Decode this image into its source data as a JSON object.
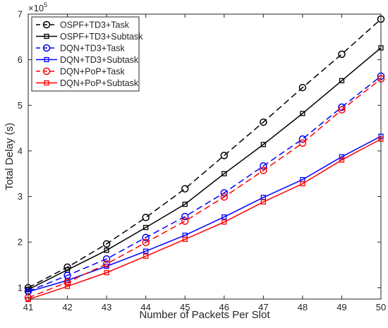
{
  "chart_data": {
    "type": "line",
    "xlabel": "Number of Packets Per Slot",
    "ylabel": "Total Delay (s)",
    "exponent_label": "×10",
    "exponent_power": "5",
    "x": [
      41,
      42,
      43,
      44,
      45,
      46,
      47,
      48,
      49,
      50
    ],
    "xlim": [
      41,
      50
    ],
    "ylim": [
      0.75,
      7
    ],
    "xticks": [
      "41",
      "42",
      "43",
      "44",
      "45",
      "46",
      "47",
      "48",
      "49",
      "50"
    ],
    "yticks": [
      {
        "value": 1,
        "label": "1"
      },
      {
        "value": 2,
        "label": "2"
      },
      {
        "value": 3,
        "label": "3"
      },
      {
        "value": 4,
        "label": "4"
      },
      {
        "value": 5,
        "label": "5"
      },
      {
        "value": 6,
        "label": "6"
      },
      {
        "value": 7,
        "label": "7"
      }
    ],
    "grid": false,
    "legend_position": "top-left",
    "series": [
      {
        "name": "OSPF+TD3+Task",
        "color": "#000000",
        "dash": "dashed",
        "marker": "circle",
        "values": [
          1.0,
          1.45,
          1.96,
          2.54,
          3.17,
          3.9,
          4.63,
          5.39,
          6.12,
          6.89
        ]
      },
      {
        "name": "OSPF+TD3+Subtask",
        "color": "#000000",
        "dash": "solid",
        "marker": "square",
        "values": [
          0.96,
          1.39,
          1.82,
          2.32,
          2.83,
          3.5,
          4.14,
          4.82,
          5.54,
          6.26
        ]
      },
      {
        "name": "DQN+TD3+Task",
        "color": "#0000ff",
        "dash": "dashed",
        "marker": "circle",
        "values": [
          0.92,
          1.27,
          1.63,
          2.1,
          2.56,
          3.08,
          3.67,
          4.26,
          4.96,
          5.64
        ]
      },
      {
        "name": "DQN+TD3+Subtask",
        "color": "#0000ff",
        "dash": "solid",
        "marker": "square",
        "values": [
          0.91,
          1.16,
          1.47,
          1.8,
          2.15,
          2.55,
          2.98,
          3.37,
          3.87,
          4.32
        ]
      },
      {
        "name": "DQN+PoP+Task",
        "color": "#ff0000",
        "dash": "dashed",
        "marker": "circle",
        "values": [
          0.78,
          1.12,
          1.52,
          1.99,
          2.46,
          2.99,
          3.57,
          4.17,
          4.9,
          5.58
        ]
      },
      {
        "name": "DQN+PoP+Subtask",
        "color": "#ff0000",
        "dash": "solid",
        "marker": "square",
        "values": [
          0.74,
          1.03,
          1.33,
          1.69,
          2.06,
          2.44,
          2.88,
          3.28,
          3.8,
          4.26
        ]
      }
    ]
  }
}
